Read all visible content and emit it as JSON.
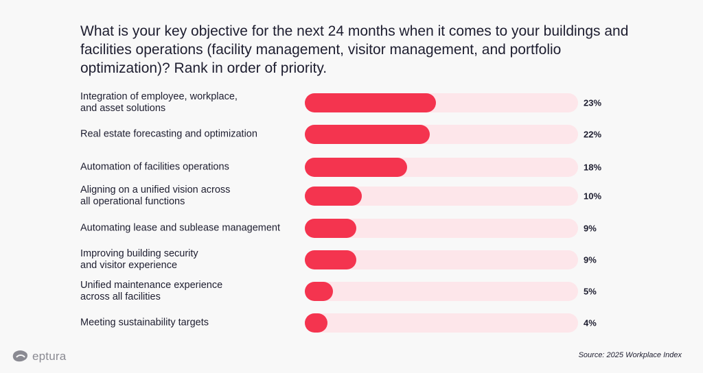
{
  "chart_data": {
    "type": "bar",
    "orientation": "horizontal",
    "title": "What is your key objective for the next 24 months when it comes to your buildings and facilities operations (facility management, visitor management, and portfolio optimization)? Rank in order of priority.",
    "categories": [
      "Integration of employee, workplace, and asset solutions",
      "Real estate forecasting and optimization",
      "Automation of facilities operations",
      "Aligning on a unified vision across all operational functions",
      "Automating lease and sublease management",
      "Improving building security and visitor experience",
      "Unified maintenance experience across all facilities",
      "Meeting sustainability targets"
    ],
    "values": [
      23,
      22,
      18,
      10,
      9,
      9,
      5,
      4
    ],
    "value_labels": [
      "23%",
      "22%",
      "18%",
      "10%",
      "9%",
      "9%",
      "5%",
      "4%"
    ],
    "xlim": [
      0,
      48
    ],
    "colors": {
      "bar": "#f4344f",
      "track": "#fde6ea"
    }
  },
  "labels_display": [
    [
      "Integration of employee, workplace,",
      "and asset solutions"
    ],
    [
      "Real estate forecasting and optimization"
    ],
    [
      "Automation of facilities operations"
    ],
    [
      "Aligning on a unified vision across",
      "all operational functions"
    ],
    [
      "Automating lease and sublease management"
    ],
    [
      "Improving building security",
      "and visitor experience"
    ],
    [
      "Unified maintenance experience",
      "across all facilities"
    ],
    [
      "Meeting sustainability targets"
    ]
  ],
  "brand": {
    "logo_text": "eptura",
    "logo_icon": "eptura-logo-icon"
  },
  "source": "Source: 2025 Workplace Index"
}
